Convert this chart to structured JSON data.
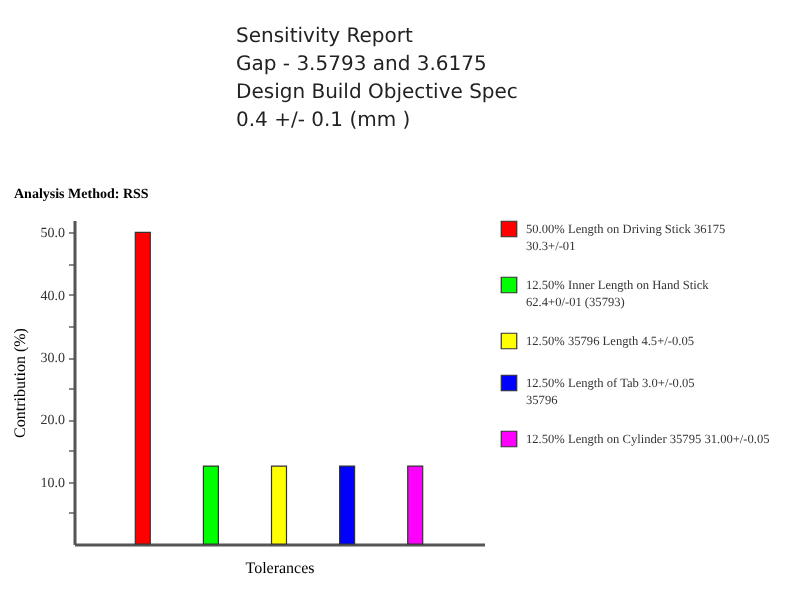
{
  "chart_data": {
    "type": "bar",
    "title": "Sensitivity Report\nGap - 3.5793 and 3.6175\nDesign Build Objective Spec\n0.4 +/- 0.1 (mm )",
    "xlabel": "Tolerances",
    "ylabel": "Contribution (%)",
    "annotations": [
      "Analysis Method: RSS"
    ],
    "categories": [
      null,
      null,
      null,
      null,
      null
    ],
    "series": [
      {
        "name": "50.00% Length on Driving Stick 36175\n30.3+/-01",
        "color": "#ff0000",
        "values": [
          50,
          null,
          null,
          null,
          null
        ]
      },
      {
        "name": "12.50% Inner Length on Hand Stick\n62.4+0/-01 (35793)",
        "color": "#00ff00",
        "values": [
          null,
          12.5,
          null,
          null,
          null
        ]
      },
      {
        "name": "12.50% 35796 Length 4.5+/-0.05",
        "color": "#ffff00",
        "values": [
          null,
          null,
          12.5,
          null,
          null
        ]
      },
      {
        "name": "12.50% Length of Tab 3.0+/-0.05\n35796",
        "color": "#0000ff",
        "values": [
          null,
          null,
          null,
          12.5,
          null
        ]
      },
      {
        "name": "12.50% Length on Cylinder 35795 31.00+/-0.05",
        "color": "#ff00ff",
        "values": [
          null,
          null,
          null,
          null,
          12.5
        ]
      }
    ],
    "ylim": [
      0,
      52
    ],
    "yticks": [
      {
        "value": 5,
        "label": null
      },
      {
        "value": 10,
        "label": "10.0"
      },
      {
        "value": 15,
        "label": null
      },
      {
        "value": 20,
        "label": "20.0"
      },
      {
        "value": 25,
        "label": null
      },
      {
        "value": 30,
        "label": "30.0"
      },
      {
        "value": 35,
        "label": null
      },
      {
        "value": 40,
        "label": "40.0"
      },
      {
        "value": 45,
        "label": null
      },
      {
        "value": 50,
        "label": "50.0"
      }
    ],
    "legend": "right",
    "grid": false
  }
}
